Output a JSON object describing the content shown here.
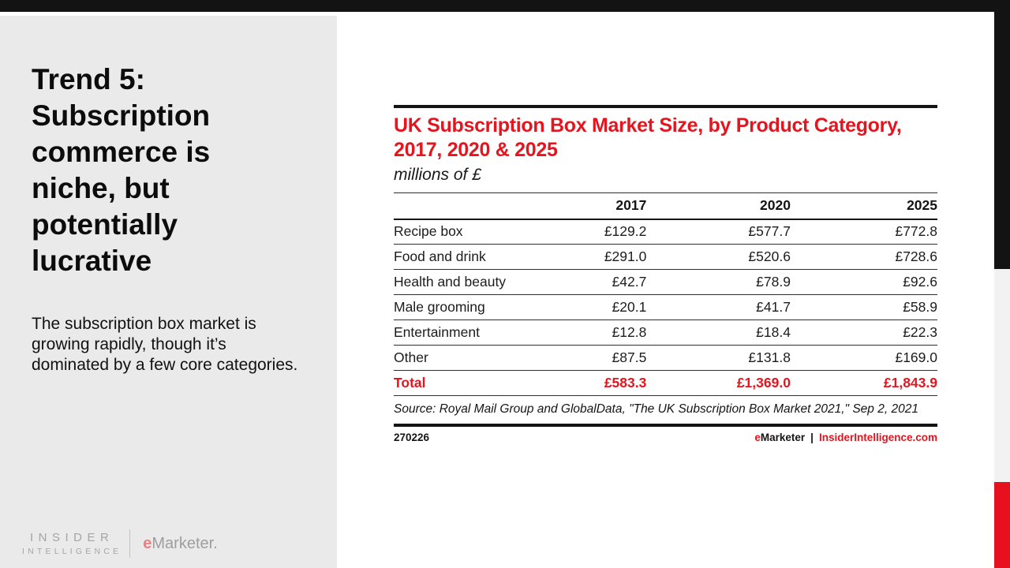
{
  "colors": {
    "accent_red": "#e6141e",
    "panel_gray": "#eaeaea",
    "bar_black": "#131313",
    "strip_gray": "#f2f2f2",
    "strip_red": "#e8101e"
  },
  "slide": {
    "title": "Trend 5: Subscription commerce is niche, but potentially lucrative",
    "subtitle": "The subscription box market is growing rapidly, though it’s dominated by a few core categories."
  },
  "brand_footer": {
    "line1": "INSIDER",
    "line2": "INTELLIGENCE",
    "emarketer_e": "e",
    "emarketer_rest": "Marketer."
  },
  "chart": {
    "title": "UK Subscription Box Market Size, by Product Category, 2017, 2020 & 2025",
    "unit": "millions of £",
    "source_line": "Source: Royal Mail Group and GlobalData, \"The UK Subscription Box Market 2021,\" Sep 2, 2021",
    "chart_id": "270226",
    "attribution": {
      "emarketer_e": "e",
      "emarketer_rest": "Marketer",
      "separator": "|",
      "site": "InsiderIntelligence.com"
    }
  },
  "chart_data": {
    "type": "table",
    "title": "UK Subscription Box Market Size, by Product Category, 2017, 2020 & 2025",
    "unit": "millions of £",
    "columns": [
      "2017",
      "2020",
      "2025"
    ],
    "rows": [
      {
        "category": "Recipe box",
        "values": [
          "£129.2",
          "£577.7",
          "£772.8"
        ]
      },
      {
        "category": "Food and drink",
        "values": [
          "£291.0",
          "£520.6",
          "£728.6"
        ]
      },
      {
        "category": "Health and beauty",
        "values": [
          "£42.7",
          "£78.9",
          "£92.6"
        ]
      },
      {
        "category": "Male grooming",
        "values": [
          "£20.1",
          "£41.7",
          "£58.9"
        ]
      },
      {
        "category": "Entertainment",
        "values": [
          "£12.8",
          "£18.4",
          "£22.3"
        ]
      },
      {
        "category": "Other",
        "values": [
          "£87.5",
          "£131.8",
          "£169.0"
        ]
      }
    ],
    "total": {
      "label": "Total",
      "values": [
        "£583.3",
        "£1,369.0",
        "£1,843.9"
      ]
    }
  }
}
